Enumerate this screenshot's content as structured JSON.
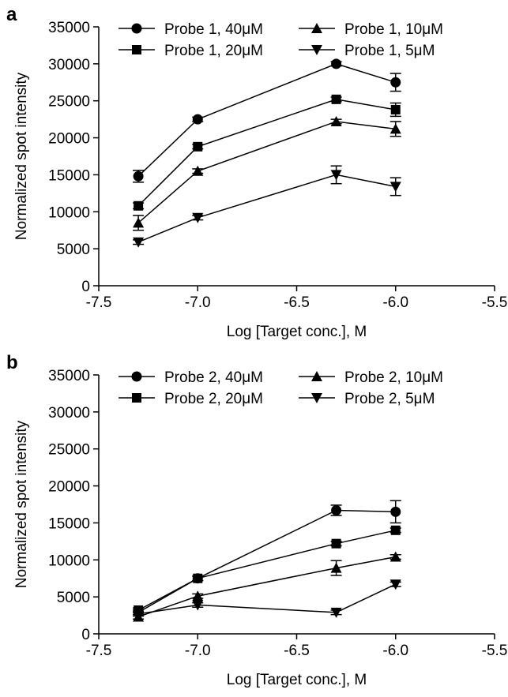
{
  "chart_data": [
    {
      "panel_label": "a",
      "type": "line",
      "xlabel": "Log [Target conc.], M",
      "ylabel": "Normalized spot intensity",
      "xlim": [
        -7.5,
        -5.5
      ],
      "ylim": [
        0,
        35000
      ],
      "x_ticks": [
        -7.5,
        -7.0,
        -6.5,
        -6.0,
        -5.5
      ],
      "x_tick_labels": [
        "-7.5",
        "-7.0",
        "-6.5",
        "-6.0",
        "-5.5"
      ],
      "y_ticks": [
        0,
        5000,
        10000,
        15000,
        20000,
        25000,
        30000,
        35000
      ],
      "y_tick_labels": [
        "0",
        "5000",
        "10000",
        "15000",
        "20000",
        "25000",
        "30000",
        "35000"
      ],
      "grid": false,
      "legend_position": "top",
      "x": [
        -7.3,
        -7.0,
        -6.3,
        -6.0
      ],
      "series": [
        {
          "name": "Probe 1, 40μM",
          "marker": "circle",
          "values": [
            14800,
            22500,
            30000,
            27500
          ],
          "errors": [
            800,
            300,
            300,
            1200
          ]
        },
        {
          "name": "Probe 1, 20μM",
          "marker": "square",
          "values": [
            10800,
            18800,
            25200,
            23800
          ],
          "errors": [
            400,
            300,
            300,
            900
          ]
        },
        {
          "name": "Probe 1, 10μM",
          "marker": "triangle-up",
          "values": [
            8500,
            15500,
            22200,
            21200
          ],
          "errors": [
            1000,
            300,
            300,
            1000
          ]
        },
        {
          "name": "Probe 1, 5μM",
          "marker": "triangle-down",
          "values": [
            5900,
            9200,
            15000,
            13400
          ],
          "errors": [
            300,
            300,
            1200,
            1200
          ]
        }
      ]
    },
    {
      "panel_label": "b",
      "type": "line",
      "xlabel": "Log [Target conc.], M",
      "ylabel": "Normalized spot intensity",
      "xlim": [
        -7.5,
        -5.5
      ],
      "ylim": [
        0,
        35000
      ],
      "x_ticks": [
        -7.5,
        -7.0,
        -6.5,
        -6.0,
        -5.5
      ],
      "x_tick_labels": [
        "-7.5",
        "-7.0",
        "-6.5",
        "-6.0",
        "-5.5"
      ],
      "y_ticks": [
        0,
        5000,
        10000,
        15000,
        20000,
        25000,
        30000,
        35000
      ],
      "y_tick_labels": [
        "0",
        "5000",
        "10000",
        "15000",
        "20000",
        "25000",
        "30000",
        "35000"
      ],
      "grid": false,
      "legend_position": "top",
      "x": [
        -7.3,
        -7.0,
        -6.3,
        -6.0
      ],
      "series": [
        {
          "name": "Probe 2, 40μM",
          "marker": "circle",
          "values": [
            2900,
            7500,
            16700,
            16500
          ],
          "errors": [
            300,
            300,
            700,
            1500
          ]
        },
        {
          "name": "Probe 2, 20μM",
          "marker": "square",
          "values": [
            3200,
            7500,
            12200,
            14000
          ],
          "errors": [
            300,
            300,
            300,
            300
          ]
        },
        {
          "name": "Probe 2, 10μM",
          "marker": "triangle-up",
          "values": [
            2300,
            5100,
            8900,
            10400
          ],
          "errors": [
            300,
            300,
            1000,
            300
          ]
        },
        {
          "name": "Probe 2, 5μM",
          "marker": "triangle-down",
          "values": [
            2700,
            3900,
            2900,
            6700
          ],
          "errors": [
            300,
            300,
            300,
            300
          ]
        }
      ]
    }
  ]
}
